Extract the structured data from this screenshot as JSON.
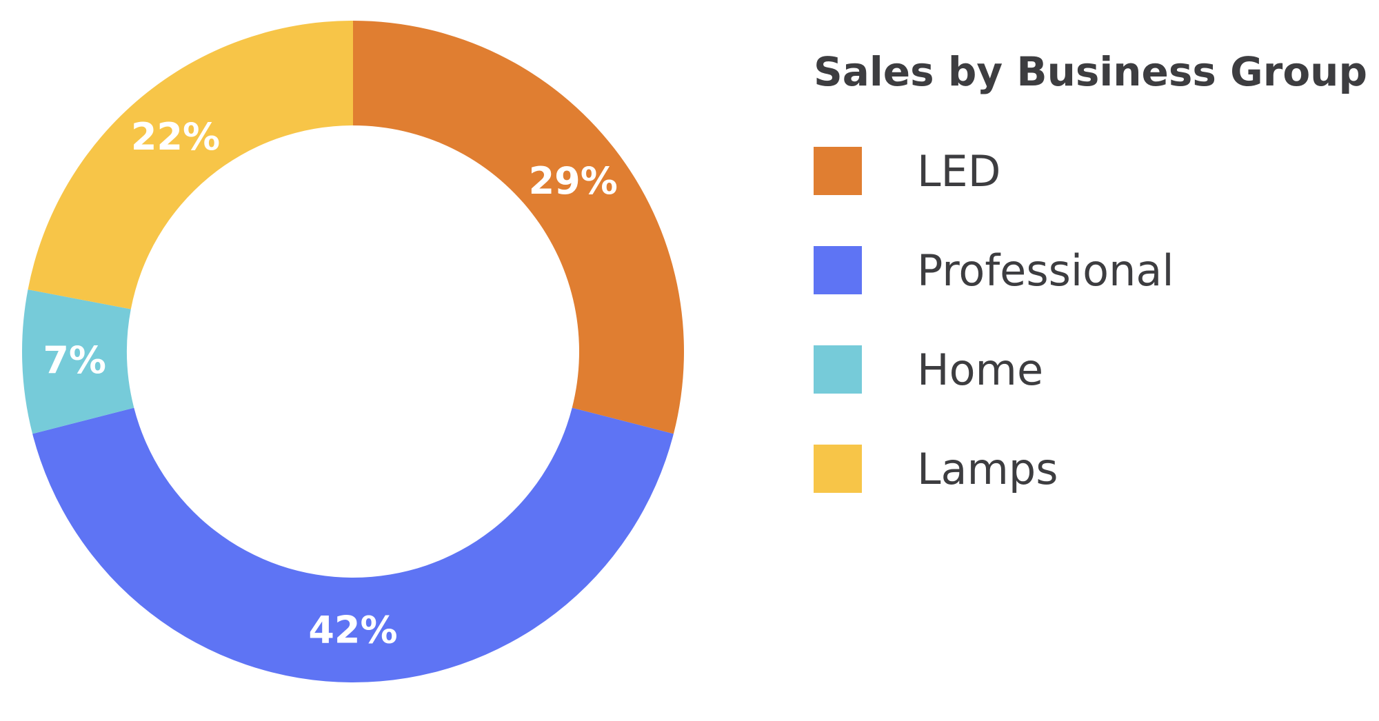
{
  "chart_data": {
    "type": "pie",
    "variant": "donut",
    "title": "Sales by Business Group",
    "legend_position": "right",
    "slices": [
      {
        "name": "LED",
        "value": 29,
        "label": "29%",
        "color": "#E07E31"
      },
      {
        "name": "Professional",
        "value": 42,
        "label": "42%",
        "color": "#5E74F4"
      },
      {
        "name": "Home",
        "value": 7,
        "label": "7%",
        "color": "#76CBD9"
      },
      {
        "name": "Lamps",
        "value": 22,
        "label": "22%",
        "color": "#F7C548"
      }
    ]
  }
}
